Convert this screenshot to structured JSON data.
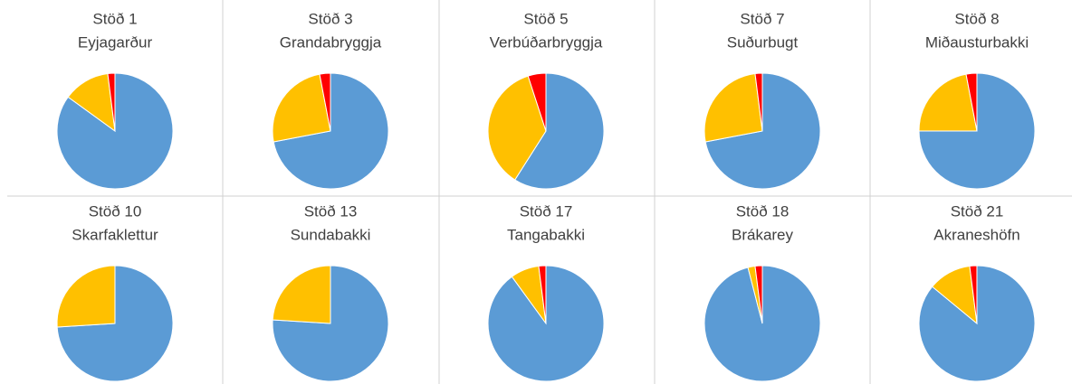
{
  "chart_data": [
    {
      "type": "pie",
      "title": "Stöð 1",
      "subtitle": "Eyjagarður",
      "values": [
        85,
        13,
        2
      ],
      "colors": [
        "#5b9bd5",
        "#ffc000",
        "#ff0000"
      ]
    },
    {
      "type": "pie",
      "title": "Stöð 3",
      "subtitle": "Grandabryggja",
      "values": [
        72,
        25,
        3
      ],
      "colors": [
        "#5b9bd5",
        "#ffc000",
        "#ff0000"
      ]
    },
    {
      "type": "pie",
      "title": "Stöð 5",
      "subtitle": "Verbúðarbryggja",
      "values": [
        59,
        36,
        5
      ],
      "colors": [
        "#5b9bd5",
        "#ffc000",
        "#ff0000"
      ]
    },
    {
      "type": "pie",
      "title": "Stöð 7",
      "subtitle": "Suðurbugt",
      "values": [
        72,
        26,
        2
      ],
      "colors": [
        "#5b9bd5",
        "#ffc000",
        "#ff0000"
      ]
    },
    {
      "type": "pie",
      "title": "Stöð 8",
      "subtitle": "Miðausturbakki",
      "values": [
        75,
        22,
        3
      ],
      "colors": [
        "#5b9bd5",
        "#ffc000",
        "#ff0000"
      ]
    },
    {
      "type": "pie",
      "title": "Stöð 10",
      "subtitle": "Skarfaklettur",
      "values": [
        74,
        26,
        0
      ],
      "colors": [
        "#5b9bd5",
        "#ffc000",
        "#ff0000"
      ]
    },
    {
      "type": "pie",
      "title": "Stöð 13",
      "subtitle": "Sundabakki",
      "values": [
        76,
        24,
        0
      ],
      "colors": [
        "#5b9bd5",
        "#ffc000",
        "#ff0000"
      ]
    },
    {
      "type": "pie",
      "title": "Stöð 17",
      "subtitle": "Tangabakki",
      "values": [
        90,
        8,
        2
      ],
      "colors": [
        "#5b9bd5",
        "#ffc000",
        "#ff0000"
      ]
    },
    {
      "type": "pie",
      "title": "Stöð 18",
      "subtitle": "Brákarey",
      "values": [
        96,
        2,
        2
      ],
      "colors": [
        "#5b9bd5",
        "#ffc000",
        "#ff0000"
      ]
    },
    {
      "type": "pie",
      "title": "Stöð 21",
      "subtitle": "Akraneshöfn",
      "values": [
        86,
        12,
        2
      ],
      "colors": [
        "#5b9bd5",
        "#ffc000",
        "#ff0000"
      ]
    }
  ]
}
